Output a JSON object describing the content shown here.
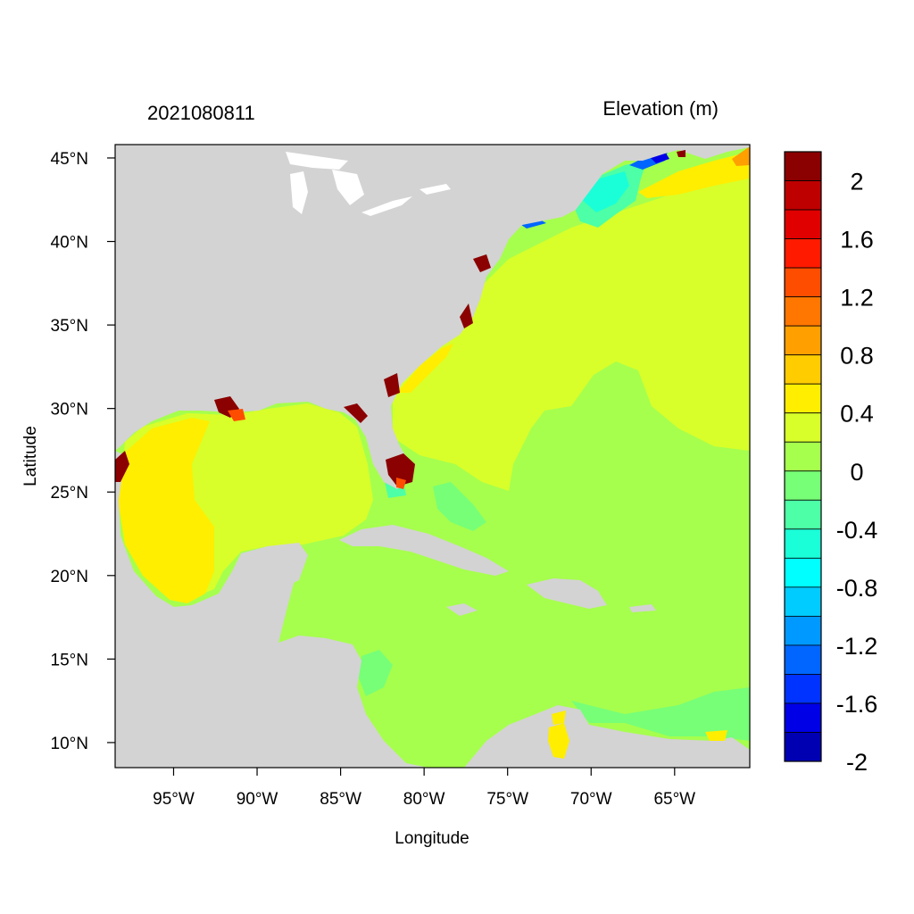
{
  "title_left": "2021080811",
  "title_right": "Elevation (m)",
  "x_axis_label": "Longitude",
  "y_axis_label": "Latitude",
  "lon_range": [
    -98.5,
    -60.5
  ],
  "lat_range": [
    8.5,
    45.8
  ],
  "x_ticks": [
    {
      "value": -95,
      "label": "95°W"
    },
    {
      "value": -90,
      "label": "90°W"
    },
    {
      "value": -85,
      "label": "85°W"
    },
    {
      "value": -80,
      "label": "80°W"
    },
    {
      "value": -75,
      "label": "75°W"
    },
    {
      "value": -70,
      "label": "70°W"
    },
    {
      "value": -65,
      "label": "65°W"
    }
  ],
  "y_ticks": [
    {
      "value": 45,
      "label": "45°N"
    },
    {
      "value": 40,
      "label": "40°N"
    },
    {
      "value": 35,
      "label": "35°N"
    },
    {
      "value": 30,
      "label": "30°N"
    },
    {
      "value": 25,
      "label": "25°N"
    },
    {
      "value": 20,
      "label": "20°N"
    },
    {
      "value": 15,
      "label": "15°N"
    },
    {
      "value": 10,
      "label": "10°N"
    }
  ],
  "colorbar": {
    "colors": [
      "#8b0000",
      "#bf0000",
      "#e00000",
      "#ff1a00",
      "#ff4d00",
      "#ff7700",
      "#ff9f00",
      "#ffcc00",
      "#ffee00",
      "#d8ff2a",
      "#a6ff4d",
      "#77ff77",
      "#4dffa6",
      "#1affd8",
      "#00ffff",
      "#00ccff",
      "#0099ff",
      "#0066ff",
      "#0033ff",
      "#0000e6",
      "#0000b3"
    ],
    "labels": [
      "2",
      "1.6",
      "1.2",
      "0.8",
      "0.4",
      "0",
      "-0.4",
      "-0.8",
      "-1.2",
      "-1.6",
      "-2"
    ]
  },
  "map_colors": {
    "land": "#d3d3d3",
    "lakes": "#ffffff",
    "elev_ge_2": "#8b0000",
    "elev_1_0_to_1_2": "#ff4d00",
    "elev_0_6_to_0_8": "#ff9f00",
    "elev_0_4_to_0_6": "#ffee00",
    "elev_0_2_to_0_4": "#d8ff2a",
    "elev_0_0_to_0_2": "#a6ff4d",
    "elev_neg_0_2_to_0_0": "#77ff77",
    "elev_neg_0_4_to_neg_0_2": "#4dffa6",
    "elev_neg_0_6_to_neg_0_4": "#1affd8",
    "elev_neg_1_4_to_neg_1_2": "#0066ff",
    "elev_neg_1_8_to_neg_1_6": "#0000e6"
  }
}
